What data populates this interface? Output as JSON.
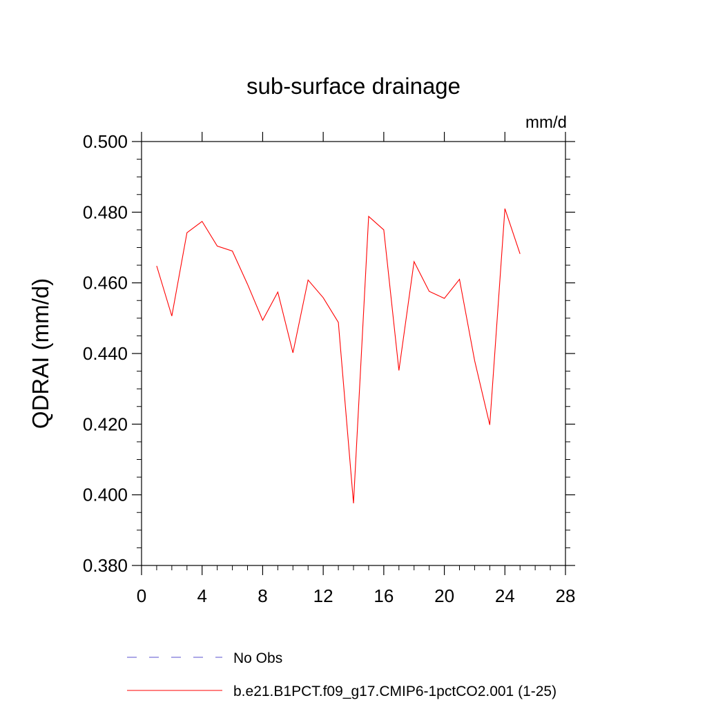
{
  "chart_data": {
    "type": "line",
    "title": "sub-surface drainage",
    "units": "mm/d",
    "ylabel": "QDRAI  (mm/d)",
    "xlabel": "",
    "xlim": [
      0,
      28
    ],
    "ylim": [
      0.38,
      0.5
    ],
    "xticks": [
      0,
      4,
      8,
      12,
      16,
      20,
      24,
      28
    ],
    "xtick_labels": [
      "0",
      "4",
      "8",
      "12",
      "16",
      "20",
      "24",
      "28"
    ],
    "yticks": [
      0.38,
      0.4,
      0.42,
      0.44,
      0.46,
      0.48,
      0.5
    ],
    "ytick_labels": [
      "0.380",
      "0.400",
      "0.420",
      "0.440",
      "0.460",
      "0.480",
      "0.500"
    ],
    "grid": false,
    "legend_position": "bottom",
    "legend": [
      {
        "label": "No Obs",
        "color": "#5a4fcf",
        "style": "dashed"
      },
      {
        "label": "b.e21.B1PCT.f09_g17.CMIP6-1pctCO2.001 (1-25)",
        "color": "#ff0000",
        "style": "solid"
      }
    ],
    "series": [
      {
        "name": "b.e21.B1PCT.f09_g17.CMIP6-1pctCO2.001 (1-25)",
        "color": "#ff0000",
        "x": [
          1,
          2,
          3,
          4,
          5,
          6,
          7,
          8,
          9,
          10,
          11,
          12,
          13,
          14,
          15,
          16,
          17,
          18,
          19,
          20,
          21,
          22,
          23,
          24,
          25
        ],
        "y": [
          0.4648,
          0.4506,
          0.4742,
          0.4774,
          0.4704,
          0.469,
          0.4596,
          0.4494,
          0.4574,
          0.4402,
          0.4608,
          0.4558,
          0.4488,
          0.3976,
          0.4788,
          0.475,
          0.4352,
          0.466,
          0.4576,
          0.4556,
          0.461,
          0.438,
          0.4198,
          0.481,
          0.4682
        ]
      }
    ]
  }
}
